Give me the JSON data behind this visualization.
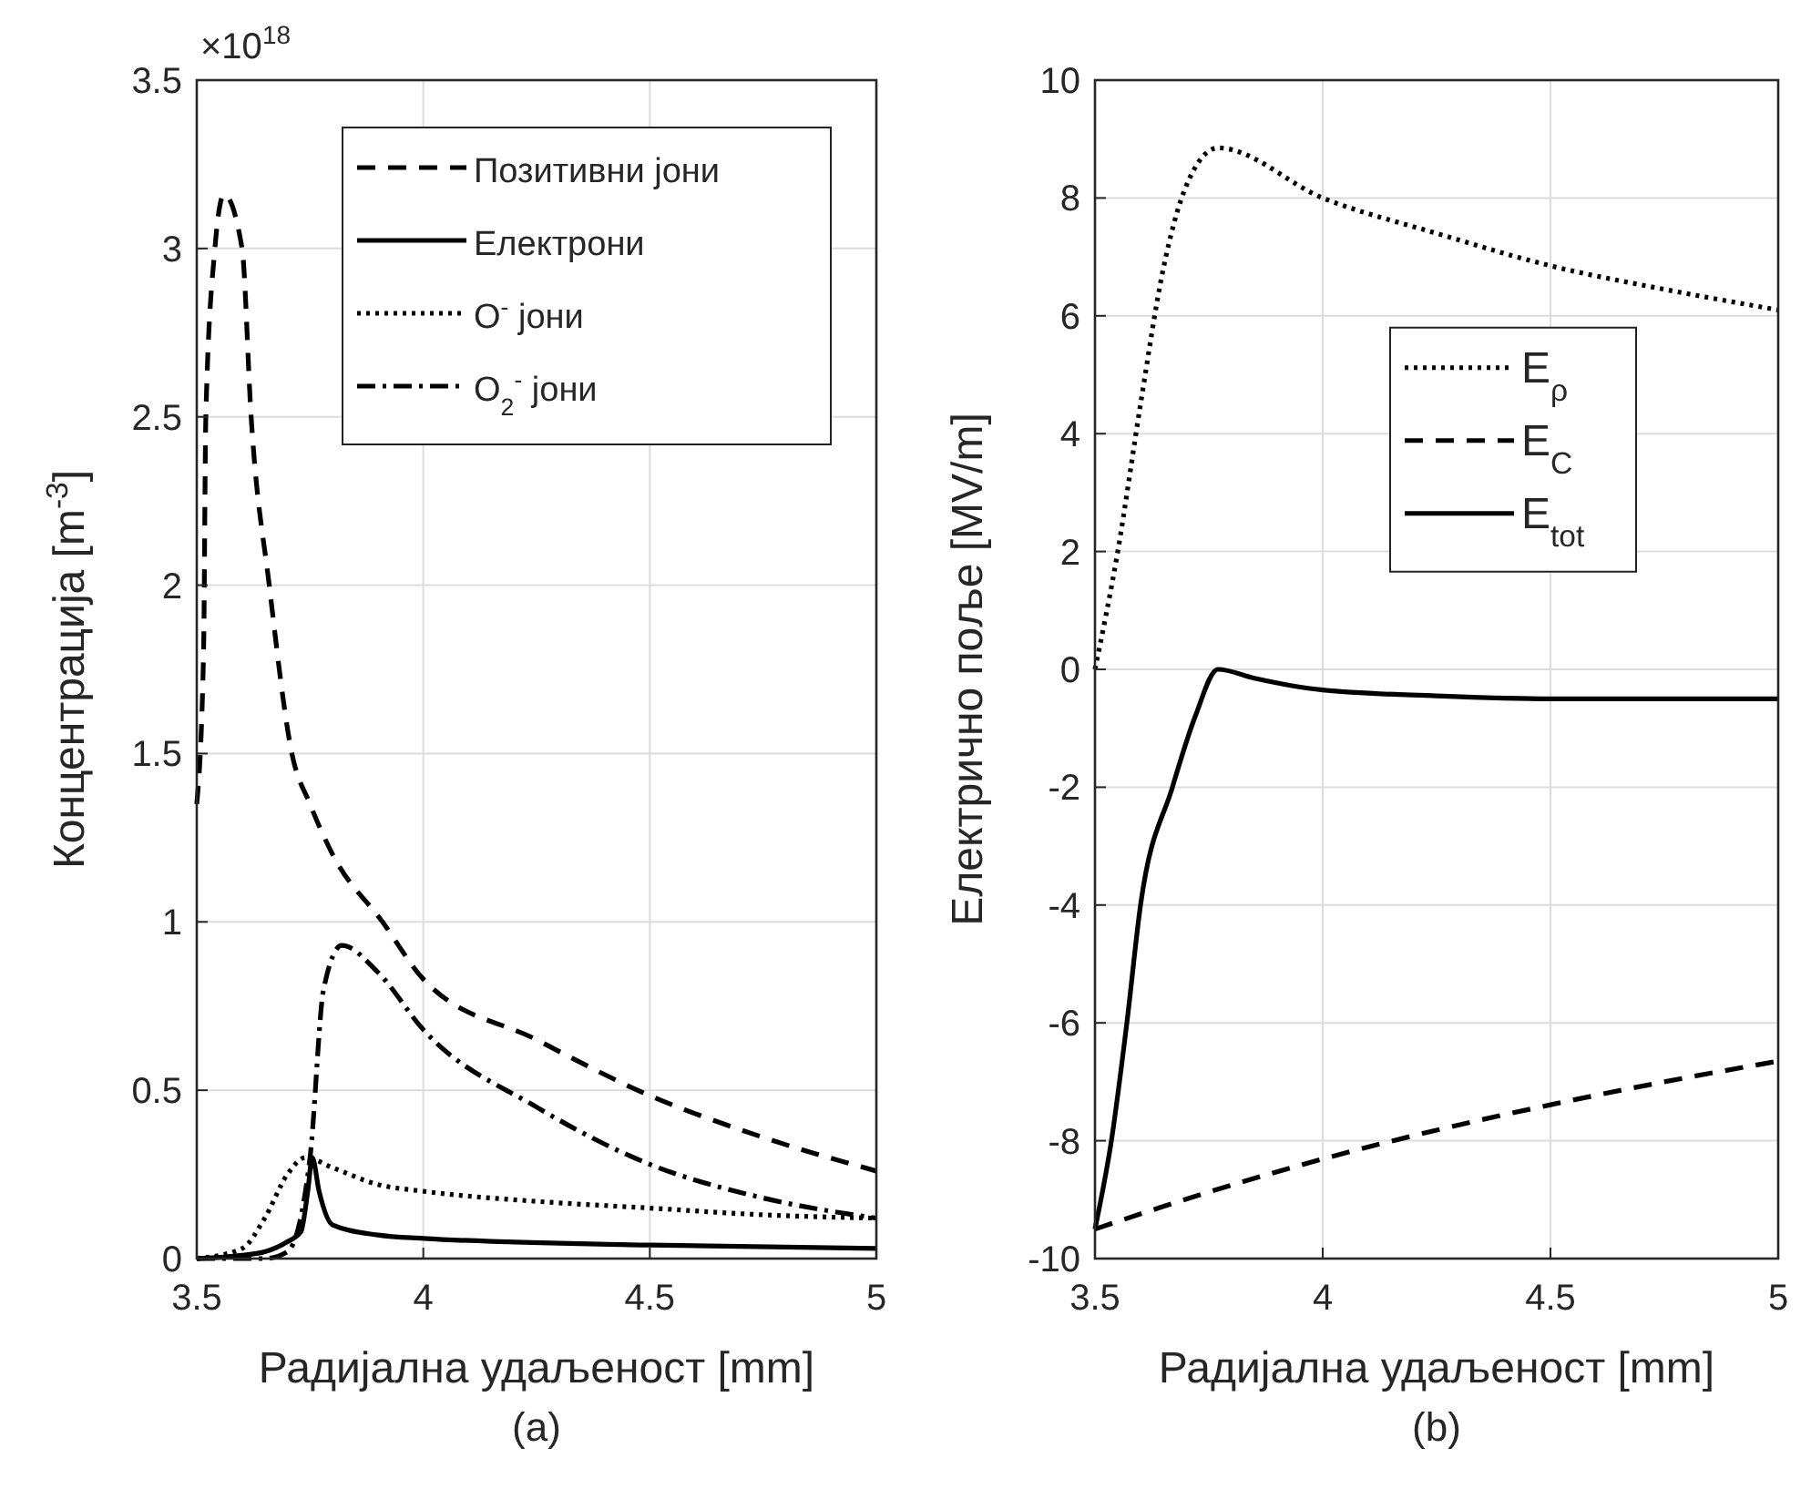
{
  "chart_data": [
    {
      "type": "line",
      "title": "(a)",
      "xlabel": "Радијална удаљеност [mm]",
      "ylabel": "Концентрација [m$^{-3}$]",
      "annotations": [
        "×10$^{18}$"
      ],
      "xlim": [
        3.5,
        5
      ],
      "xticks": [
        3.5,
        4,
        4.5,
        5
      ],
      "ylim": [
        0,
        3.5
      ],
      "yticks": [
        0,
        0.5,
        1,
        1.5,
        2,
        2.5,
        3,
        3.5
      ],
      "grid": true,
      "legend": "top right",
      "series": [
        {
          "name": "Позитивни јони",
          "color": "#000000",
          "line_style": "dashed",
          "x": [
            3.5,
            3.515,
            3.52,
            3.54,
            3.56,
            3.6,
            3.62,
            3.66,
            3.71,
            3.75,
            3.8,
            3.91,
            4.0,
            4.25,
            4.49,
            4.75,
            5
          ],
          "values": [
            1.35,
            1.8,
            2.5,
            3.0,
            3.16,
            3.0,
            2.5,
            2.0,
            1.5,
            1.35,
            1.2,
            1.0,
            0.83,
            0.65,
            0.49,
            0.36,
            0.26
          ]
        },
        {
          "name": "Електрони",
          "color": "#000000",
          "line_style": "solid",
          "x": [
            3.5,
            3.6,
            3.65,
            3.7,
            3.73,
            3.745,
            3.755,
            3.77,
            3.8,
            3.9,
            4.0,
            4.5,
            5
          ],
          "values": [
            0.0,
            0.01,
            0.02,
            0.05,
            0.08,
            0.2,
            0.3,
            0.2,
            0.1,
            0.07,
            0.06,
            0.04,
            0.03
          ]
        },
        {
          "name": "O$^{-}$ јони",
          "color": "#000000",
          "line_style": "dotted",
          "x": [
            3.5,
            3.6,
            3.65,
            3.7,
            3.74,
            3.8,
            3.9,
            4.0,
            4.25,
            4.5,
            4.75,
            5
          ],
          "values": [
            0.0,
            0.03,
            0.12,
            0.25,
            0.3,
            0.27,
            0.22,
            0.2,
            0.17,
            0.15,
            0.13,
            0.12
          ]
        },
        {
          "name": "O$_{2}$$^{-}$ јони",
          "color": "#000000",
          "line_style": "dashdot",
          "x": [
            3.5,
            3.65,
            3.7,
            3.75,
            3.78,
            3.82,
            3.9,
            4.0,
            4.25,
            4.5,
            4.75,
            5
          ],
          "values": [
            0.0,
            0.0,
            0.02,
            0.3,
            0.8,
            0.93,
            0.85,
            0.68,
            0.45,
            0.28,
            0.18,
            0.12
          ]
        }
      ]
    },
    {
      "type": "line",
      "title": "(b)",
      "xlabel": "Радијална удаљеност [mm]",
      "ylabel": "Електрично поље [MV/m]",
      "xlim": [
        3.5,
        5
      ],
      "xticks": [
        3.5,
        4,
        4.5,
        5
      ],
      "ylim": [
        -10,
        10
      ],
      "yticks": [
        -10,
        -8,
        -6,
        -4,
        -2,
        0,
        2,
        4,
        6,
        8,
        10
      ],
      "grid": true,
      "legend": "right",
      "series": [
        {
          "name": "E$_{ρ}$",
          "color": "#000000",
          "line_style": "dotted",
          "x": [
            3.5,
            3.55,
            3.6,
            3.65,
            3.7,
            3.77,
            4.0,
            4.25,
            4.5,
            4.75,
            5
          ],
          "values": [
            0,
            2,
            4.5,
            6.8,
            8.2,
            8.85,
            8.0,
            7.4,
            6.85,
            6.45,
            6.1
          ]
        },
        {
          "name": "E$_{C}$",
          "color": "#000000",
          "line_style": "dashed",
          "x": [
            3.5,
            3.75,
            4.0,
            4.25,
            4.5,
            4.75,
            5
          ],
          "values": [
            -9.5,
            -8.87,
            -8.31,
            -7.82,
            -7.39,
            -7.0,
            -6.65
          ]
        },
        {
          "name": "E$_{tot}$",
          "color": "#000000",
          "line_style": "solid",
          "x": [
            3.5,
            3.536,
            3.57,
            3.6,
            3.67,
            3.72,
            3.77,
            3.85,
            4.0,
            4.25,
            4.5,
            5
          ],
          "values": [
            -9.5,
            -8,
            -6,
            -4,
            -2,
            -0.8,
            0,
            -0.15,
            -0.35,
            -0.45,
            -0.5,
            -0.5
          ]
        }
      ]
    }
  ]
}
